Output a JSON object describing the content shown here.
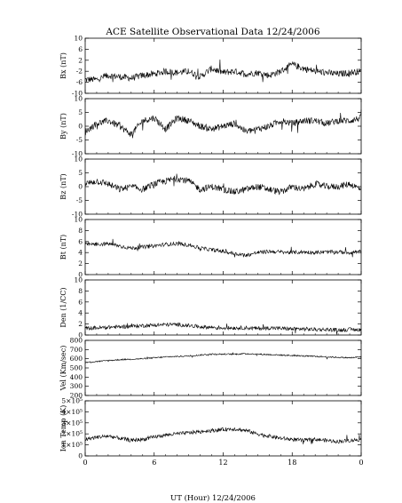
{
  "chart_data": {
    "type": "line",
    "title": "ACE Satellite Observational Data   12/24/2006",
    "xlabel": "UT (Hour)  12/24/2006",
    "x_ticks": [
      "0",
      "6",
      "12",
      "18",
      "0"
    ],
    "xlim": [
      0,
      24
    ],
    "grid": false,
    "panels": [
      {
        "ylabel": "Bx (nT)",
        "ylim": [
          -10,
          10
        ],
        "yticks": [
          "-10",
          "-6",
          "-2",
          "2",
          "6",
          "10"
        ],
        "series": [
          {
            "x": [
              0,
              1,
              2,
              3,
              4,
              5,
              6,
              7,
              8,
              9,
              10,
              11,
              12,
              13,
              14,
              15,
              16,
              17,
              18,
              19,
              20,
              21,
              22,
              23,
              24
            ],
            "y": [
              -5,
              -5,
              -3.5,
              -4,
              -4.5,
              -3.5,
              -3,
              -2,
              -2.5,
              -2,
              -4,
              -1,
              -2.5,
              -2,
              -3,
              -2.5,
              -3.5,
              -2,
              0.5,
              -1,
              -2,
              -2.5,
              -3,
              -2.5,
              -2
            ]
          }
        ]
      },
      {
        "ylabel": "By (nT)",
        "ylim": [
          -10,
          10
        ],
        "yticks": [
          "-10",
          "-5",
          "0",
          "5",
          "10"
        ],
        "series": [
          {
            "x": [
              0,
              1,
              2,
              3,
              4,
              5,
              6,
              7,
              8,
              9,
              10,
              11,
              12,
              13,
              14,
              15,
              16,
              17,
              18,
              19,
              20,
              21,
              22,
              23,
              24
            ],
            "y": [
              -2,
              1,
              2,
              0,
              -3,
              2,
              3,
              -1,
              3,
              2,
              0,
              -1,
              0,
              1,
              -2,
              -1,
              0,
              2,
              1,
              2,
              2,
              1,
              2,
              2,
              3
            ]
          }
        ]
      },
      {
        "ylabel": "Bz (nT)",
        "ylim": [
          -10,
          10
        ],
        "yticks": [
          "-10",
          "-5",
          "0",
          "5",
          "10"
        ],
        "series": [
          {
            "x": [
              0,
              1,
              2,
              3,
              4,
              5,
              6,
              7,
              8,
              9,
              10,
              11,
              12,
              13,
              14,
              15,
              16,
              17,
              18,
              19,
              20,
              21,
              22,
              23,
              24
            ],
            "y": [
              1,
              2,
              1,
              -1,
              0,
              -1,
              1,
              2,
              3,
              2,
              -1,
              0,
              -1,
              -2,
              -1,
              0,
              -1,
              -2,
              0,
              -1,
              1,
              0,
              0,
              1,
              -1
            ]
          }
        ]
      },
      {
        "ylabel": "Bt (nT)",
        "ylim": [
          0,
          10
        ],
        "yticks": [
          "0",
          "2",
          "4",
          "6",
          "8",
          "10"
        ],
        "series": [
          {
            "x": [
              0,
              1,
              2,
              3,
              4,
              5,
              6,
              7,
              8,
              9,
              10,
              11,
              12,
              13,
              14,
              15,
              16,
              17,
              18,
              19,
              20,
              21,
              22,
              23,
              24
            ],
            "y": [
              5.5,
              5.5,
              5.6,
              5.2,
              4.8,
              5,
              5.2,
              5.5,
              5.6,
              5.4,
              4.8,
              4.5,
              4.2,
              3.8,
              3.5,
              4,
              4.2,
              4.1,
              4,
              4.1,
              4,
              4.1,
              4.1,
              4,
              4.2
            ]
          }
        ]
      },
      {
        "ylabel": "Den (1/CC)",
        "ylim": [
          0,
          10
        ],
        "yticks": [
          "0",
          "2",
          "4",
          "6",
          "8",
          "10"
        ],
        "series": [
          {
            "x": [
              0,
              1,
              2,
              3,
              4,
              5,
              6,
              7,
              8,
              9,
              10,
              11,
              12,
              13,
              14,
              15,
              16,
              17,
              18,
              19,
              20,
              21,
              22,
              23,
              24
            ],
            "y": [
              1.2,
              1.3,
              1.4,
              1.5,
              1.6,
              1.7,
              1.8,
              1.9,
              1.9,
              1.7,
              1.5,
              1.4,
              1.3,
              1.3,
              1.3,
              1.2,
              1.3,
              1.2,
              1.1,
              1.1,
              1,
              1,
              0.9,
              1,
              1
            ]
          }
        ]
      },
      {
        "ylabel": "Vel (Km/sec)",
        "ylim": [
          200,
          800
        ],
        "yticks": [
          "200",
          "300",
          "400",
          "500",
          "600",
          "700",
          "800"
        ],
        "series": [
          {
            "x": [
              0,
              1,
              2,
              3,
              4,
              5,
              6,
              7,
              8,
              9,
              10,
              11,
              12,
              13,
              14,
              15,
              16,
              17,
              18,
              19,
              20,
              21,
              22,
              23,
              24
            ],
            "y": [
              560,
              570,
              580,
              590,
              595,
              600,
              610,
              620,
              625,
              630,
              640,
              650,
              650,
              650,
              655,
              650,
              645,
              640,
              635,
              630,
              625,
              620,
              615,
              610,
              620
            ]
          }
        ]
      },
      {
        "ylabel": "Ion Temp (K)",
        "ylim": [
          0,
          500000
        ],
        "yticks": [
          "0",
          "1×10⁵",
          "2×10⁵",
          "3×10⁵",
          "4×10⁵",
          "5×10⁵"
        ],
        "series": [
          {
            "x": [
              0,
              1,
              2,
              3,
              4,
              5,
              6,
              7,
              8,
              9,
              10,
              11,
              12,
              13,
              14,
              15,
              16,
              17,
              18,
              19,
              20,
              21,
              22,
              23,
              24
            ],
            "y": [
              150000,
              170000,
              180000,
              160000,
              140000,
              150000,
              170000,
              190000,
              200000,
              210000,
              220000,
              230000,
              240000,
              245000,
              230000,
              200000,
              180000,
              160000,
              150000,
              140000,
              150000,
              140000,
              130000,
              140000,
              150000
            ]
          }
        ]
      }
    ]
  }
}
